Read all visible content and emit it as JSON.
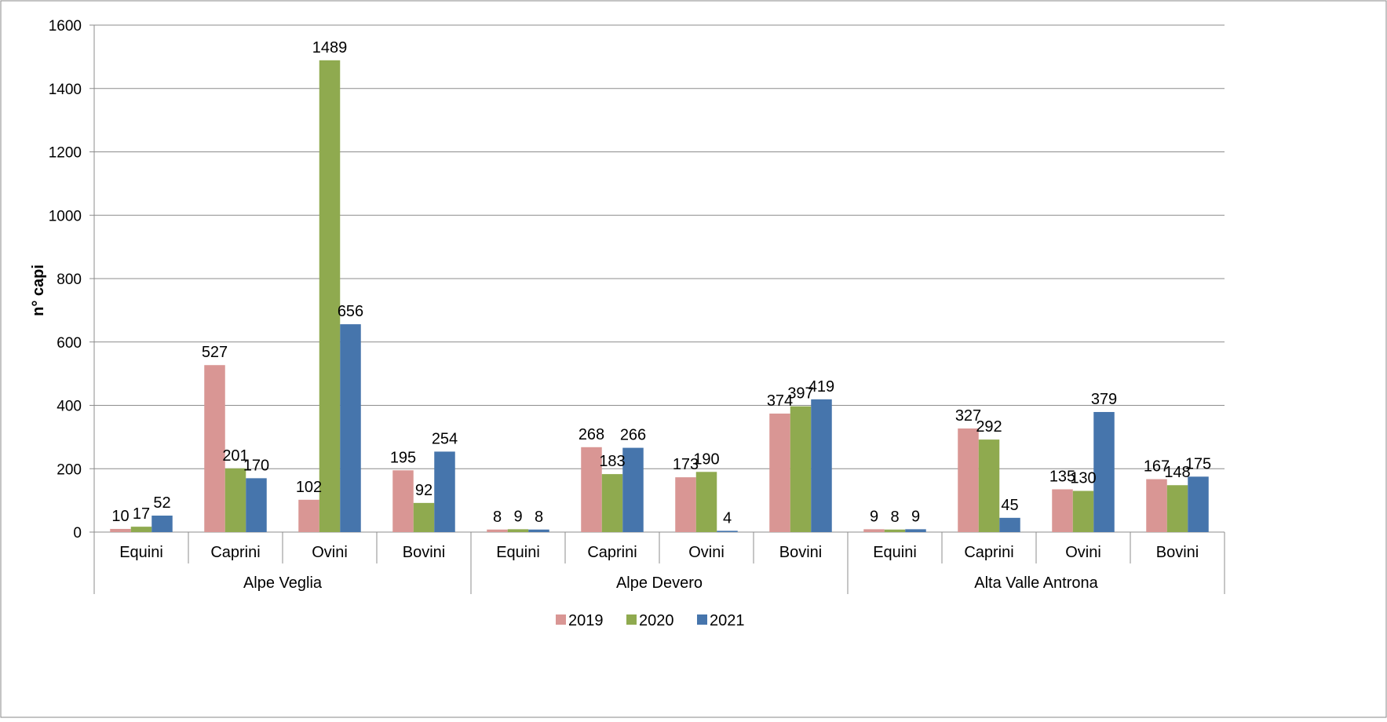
{
  "chart_data": {
    "type": "bar",
    "title": "",
    "xlabel": "",
    "ylabel": "n° capi",
    "ylim": [
      0,
      1600
    ],
    "yticks": [
      0,
      200,
      400,
      600,
      800,
      1000,
      1200,
      1400,
      1600
    ],
    "grid": true,
    "legend_position": "bottom",
    "groups": [
      {
        "name": "Alpe Veglia",
        "categories": [
          "Equini",
          "Caprini",
          "Ovini",
          "Bovini"
        ]
      },
      {
        "name": "Alpe Devero",
        "categories": [
          "Equini",
          "Caprini",
          "Ovini",
          "Bovini"
        ]
      },
      {
        "name": "Alta Valle Antrona",
        "categories": [
          "Equini",
          "Caprini",
          "Ovini",
          "Bovini"
        ]
      }
    ],
    "series": [
      {
        "name": "2019",
        "color": "#d99694",
        "values": [
          10,
          527,
          102,
          195,
          8,
          268,
          173,
          374,
          9,
          327,
          135,
          167
        ]
      },
      {
        "name": "2020",
        "color": "#8faa4f",
        "values": [
          17,
          201,
          1489,
          92,
          9,
          183,
          190,
          397,
          8,
          292,
          130,
          148
        ]
      },
      {
        "name": "2021",
        "color": "#4675ac",
        "values": [
          52,
          170,
          656,
          254,
          8,
          266,
          4,
          419,
          9,
          45,
          379,
          175
        ]
      }
    ]
  }
}
